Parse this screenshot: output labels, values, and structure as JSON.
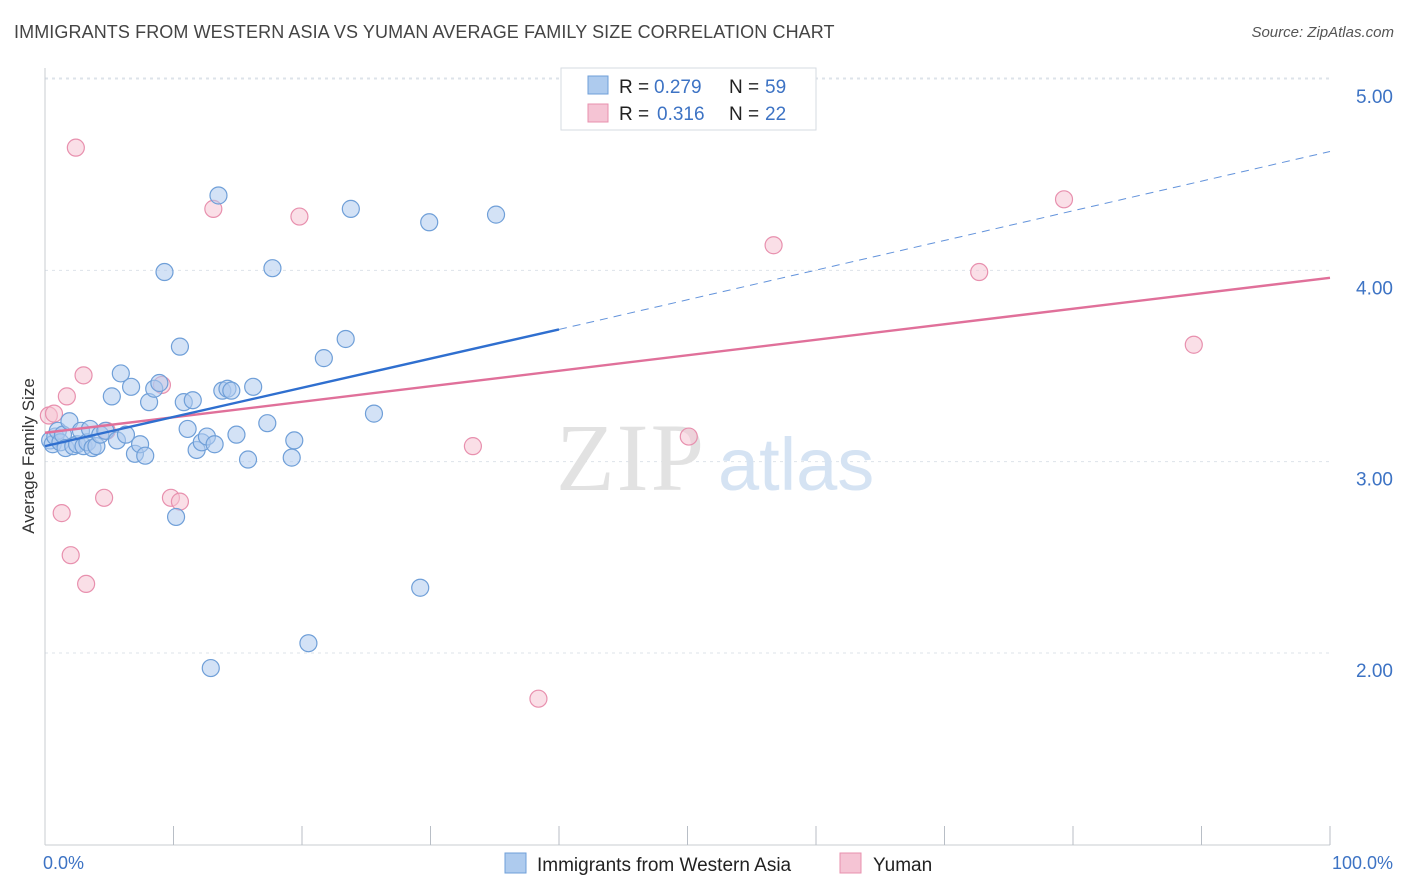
{
  "header": {
    "title": "IMMIGRANTS FROM WESTERN ASIA VS YUMAN AVERAGE FAMILY SIZE CORRELATION CHART",
    "source": "Source: ZipAtlas.com"
  },
  "watermark": {
    "zip": "ZIP",
    "atlas": "atlas"
  },
  "colors": {
    "blue_fill": "#aecbee",
    "blue_stroke": "#6f9fd8",
    "blue_line": "#2f6fcf",
    "pink_fill": "#f5c4d4",
    "pink_stroke": "#e890ae",
    "pink_line": "#e0709a",
    "tick_text": "#3d73c4",
    "grid": "#dde3ea"
  },
  "legend": {
    "r_label": "R =",
    "n_label": "N =",
    "series": [
      {
        "name": "Immigrants from Western Asia",
        "r": "0.279",
        "n": "59"
      },
      {
        "name": "Yuman",
        "r": "0.316",
        "n": "22"
      }
    ]
  },
  "chart_data": {
    "type": "scatter",
    "title": "IMMIGRANTS FROM WESTERN ASIA VS YUMAN AVERAGE FAMILY SIZE CORRELATION CHART",
    "xlabel": "",
    "ylabel": "Average Family Size",
    "xlim": [
      0,
      100
    ],
    "ylim": [
      1.0,
      5.1
    ],
    "x_tick_labels": [
      "0.0%",
      "100.0%"
    ],
    "y_ticks": [
      2.0,
      3.0,
      4.0,
      5.0
    ],
    "y_tick_labels": [
      "2.00",
      "3.00",
      "4.00",
      "5.00"
    ],
    "grid": true,
    "legend_position": "top-center",
    "series": [
      {
        "name": "Immigrants from Western Asia",
        "points": [
          [
            0.4,
            3.2
          ],
          [
            0.6,
            3.18
          ],
          [
            0.8,
            3.22
          ],
          [
            1.0,
            3.25
          ],
          [
            1.2,
            3.19
          ],
          [
            1.4,
            3.23
          ],
          [
            1.6,
            3.16
          ],
          [
            1.9,
            3.3
          ],
          [
            2.2,
            3.17
          ],
          [
            2.5,
            3.18
          ],
          [
            2.8,
            3.25
          ],
          [
            3.0,
            3.17
          ],
          [
            3.3,
            3.19
          ],
          [
            3.5,
            3.26
          ],
          [
            3.7,
            3.16
          ],
          [
            4.0,
            3.17
          ],
          [
            4.3,
            3.23
          ],
          [
            4.7,
            3.25
          ],
          [
            5.2,
            3.43
          ],
          [
            5.6,
            3.2
          ],
          [
            5.9,
            3.55
          ],
          [
            6.3,
            3.23
          ],
          [
            6.7,
            3.48
          ],
          [
            7.0,
            3.13
          ],
          [
            7.4,
            3.18
          ],
          [
            7.8,
            3.12
          ],
          [
            8.1,
            3.4
          ],
          [
            8.5,
            3.47
          ],
          [
            8.9,
            3.5
          ],
          [
            9.3,
            4.08
          ],
          [
            10.2,
            2.8
          ],
          [
            10.5,
            3.69
          ],
          [
            10.8,
            3.4
          ],
          [
            11.1,
            3.26
          ],
          [
            11.5,
            3.41
          ],
          [
            11.8,
            3.15
          ],
          [
            12.2,
            3.19
          ],
          [
            12.6,
            3.22
          ],
          [
            12.9,
            2.01
          ],
          [
            13.2,
            3.18
          ],
          [
            13.5,
            4.48
          ],
          [
            13.8,
            3.46
          ],
          [
            14.2,
            3.47
          ],
          [
            14.5,
            3.46
          ],
          [
            14.9,
            3.23
          ],
          [
            15.8,
            3.1
          ],
          [
            16.2,
            3.48
          ],
          [
            17.3,
            3.29
          ],
          [
            17.7,
            4.1
          ],
          [
            19.2,
            3.11
          ],
          [
            19.4,
            3.2
          ],
          [
            20.5,
            2.14
          ],
          [
            21.7,
            3.63
          ],
          [
            23.4,
            3.73
          ],
          [
            23.8,
            4.41
          ],
          [
            25.6,
            3.34
          ],
          [
            29.2,
            2.43
          ],
          [
            29.9,
            4.34
          ],
          [
            35.1,
            4.38
          ]
        ],
        "trend": {
          "x_start": 0,
          "y_start": 3.17,
          "x_end": 40,
          "y_end": 3.78,
          "x_dash_end": 100,
          "y_dash_end": 4.71
        }
      },
      {
        "name": "Yuman",
        "points": [
          [
            0.3,
            3.33
          ],
          [
            0.7,
            3.34
          ],
          [
            1.3,
            2.82
          ],
          [
            1.7,
            3.43
          ],
          [
            2.0,
            2.6
          ],
          [
            2.4,
            4.73
          ],
          [
            3.0,
            3.54
          ],
          [
            3.2,
            2.45
          ],
          [
            4.6,
            2.9
          ],
          [
            4.8,
            3.25
          ],
          [
            9.1,
            3.49
          ],
          [
            9.8,
            2.9
          ],
          [
            10.5,
            2.88
          ],
          [
            13.1,
            4.41
          ],
          [
            19.8,
            4.37
          ],
          [
            33.3,
            3.17
          ],
          [
            38.4,
            1.85
          ],
          [
            50.1,
            3.22
          ],
          [
            56.7,
            4.22
          ],
          [
            72.7,
            4.08
          ],
          [
            79.3,
            4.46
          ],
          [
            89.4,
            3.7
          ]
        ],
        "trend": {
          "x_start": 0,
          "y_start": 3.24,
          "x_end": 100,
          "y_end": 4.05
        }
      }
    ]
  }
}
